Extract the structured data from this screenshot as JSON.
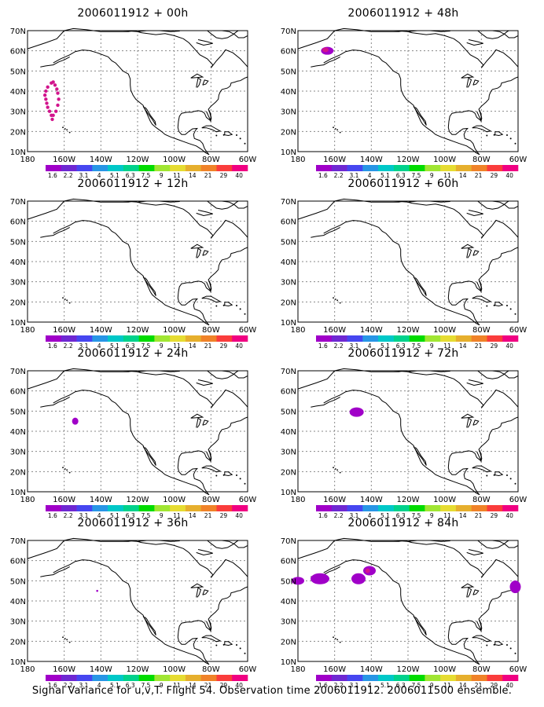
{
  "panels": [
    {
      "title": "2006011912 + 00h"
    },
    {
      "title": "2006011912 + 48h"
    },
    {
      "title": "2006011912 + 12h"
    },
    {
      "title": "2006011912 + 60h"
    },
    {
      "title": "2006011912 + 24h"
    },
    {
      "title": "2006011912 + 72h"
    },
    {
      "title": "2006011912 + 36h"
    },
    {
      "title": "2006011912 + 84h"
    }
  ],
  "axes": {
    "lat_labels": [
      "70N",
      "60N",
      "50N",
      "40N",
      "30N",
      "20N",
      "10N"
    ],
    "lon_labels": [
      "180",
      "160W",
      "140W",
      "120W",
      "100W",
      "80W",
      "60W"
    ]
  },
  "colorbar": {
    "labels": [
      "1.6",
      "2.2",
      "3.1",
      "4",
      "5.1",
      "6.3",
      "7.5",
      "9",
      "11",
      "14",
      "21",
      "29",
      "40"
    ],
    "colors": [
      "#a000c8",
      "#6e28d2",
      "#4646f0",
      "#2896e6",
      "#00c8c8",
      "#00d28c",
      "#00dc00",
      "#a0e632",
      "#e6dc32",
      "#e6af2d",
      "#f08228",
      "#fa3c3c",
      "#f00082"
    ]
  },
  "caption": "Signal Variance for u,v,T. Flight 54. Observation time 2006011912. 2006011500 ensemble."
}
